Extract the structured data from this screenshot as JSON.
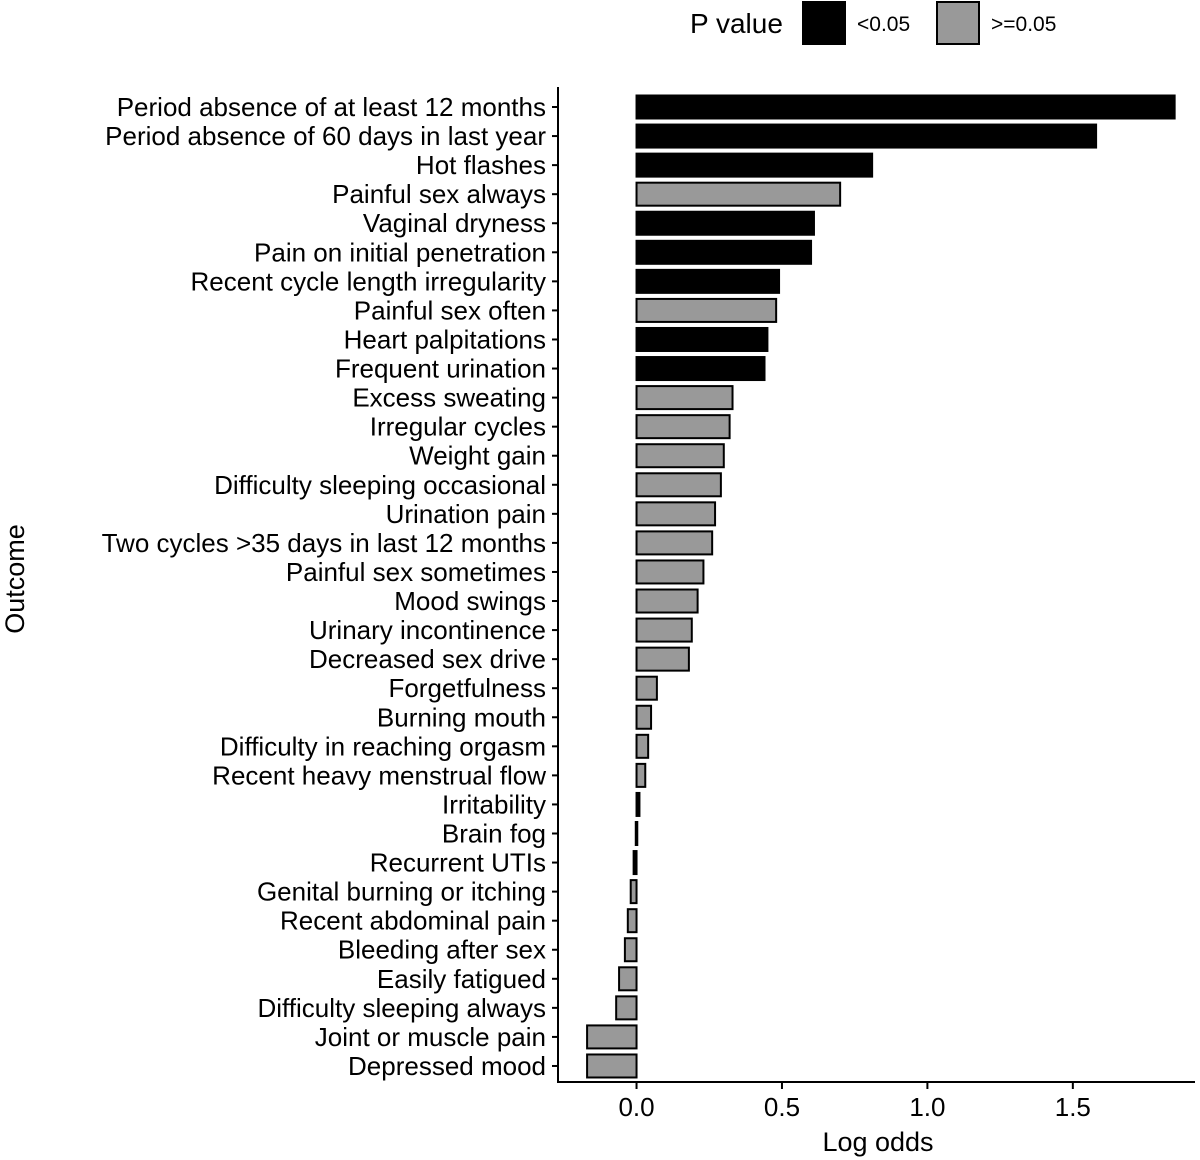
{
  "chart_data": {
    "type": "bar",
    "orientation": "horizontal",
    "xlabel": "Log odds",
    "ylabel": "Outcome",
    "xlim": [
      -0.27,
      1.92
    ],
    "xticks": [
      0.0,
      0.5,
      1.0,
      1.5
    ],
    "xtick_labels": [
      "0.0",
      "0.5",
      "1.0",
      "1.5"
    ],
    "grid": false,
    "legend": {
      "title": "P value",
      "position": "top",
      "entries": [
        {
          "label": "<0.05",
          "color": "#000000",
          "key": "sig"
        },
        {
          "label": ">=0.05",
          "color": "#999999",
          "key": "ns"
        }
      ]
    },
    "categories": [
      "Period absence of at least 12 months",
      "Period absence of 60 days in last year",
      "Hot flashes",
      "Painful sex always",
      "Vaginal dryness",
      "Pain on initial penetration",
      "Recent cycle length irregularity",
      "Painful sex often",
      "Heart palpitations",
      "Frequent urination",
      "Excess sweating",
      "Irregular cycles",
      "Weight gain",
      "Difficulty sleeping occasional",
      "Urination pain",
      "Two cycles >35 days in last 12 months",
      "Painful sex sometimes",
      "Mood swings",
      "Urinary incontinence",
      "Decreased sex drive",
      "Forgetfulness",
      "Burning mouth",
      "Difficulty in reaching orgasm",
      "Recent heavy menstrual flow",
      "Irritability",
      "Brain fog",
      "Recurrent UTIs",
      "Genital burning or itching",
      "Recent abdominal pain",
      "Bleeding after sex",
      "Easily fatigued",
      "Difficulty sleeping always",
      "Joint or muscle pain",
      "Depressed mood"
    ],
    "values": [
      1.85,
      1.58,
      0.81,
      0.7,
      0.61,
      0.6,
      0.49,
      0.48,
      0.45,
      0.44,
      0.33,
      0.32,
      0.3,
      0.29,
      0.27,
      0.26,
      0.23,
      0.21,
      0.19,
      0.18,
      0.07,
      0.05,
      0.04,
      0.03,
      0.01,
      0.0,
      -0.01,
      -0.02,
      -0.03,
      -0.04,
      -0.06,
      -0.07,
      -0.17,
      -0.17
    ],
    "p_value_group": [
      "sig",
      "sig",
      "sig",
      "ns",
      "sig",
      "sig",
      "sig",
      "ns",
      "sig",
      "sig",
      "ns",
      "ns",
      "ns",
      "ns",
      "ns",
      "ns",
      "ns",
      "ns",
      "ns",
      "ns",
      "ns",
      "ns",
      "ns",
      "ns",
      "sig",
      "ns",
      "sig",
      "ns",
      "ns",
      "ns",
      "ns",
      "ns",
      "ns",
      "ns"
    ]
  }
}
